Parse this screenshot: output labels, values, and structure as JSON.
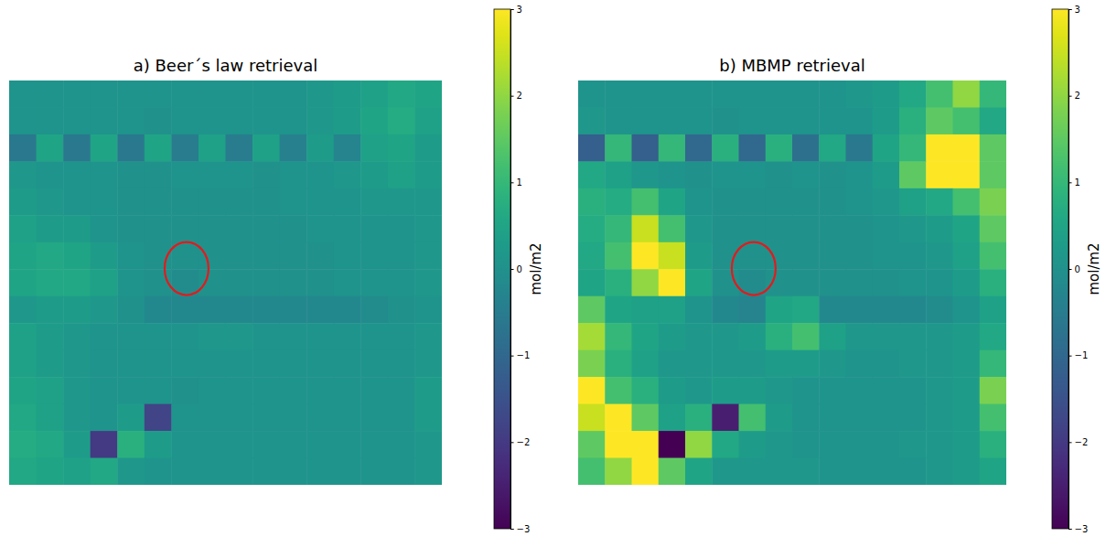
{
  "chart_data": [
    {
      "type": "heatmap",
      "title": "a) Beer´s law retrieval",
      "color": "viridis",
      "tick_labels": false,
      "colorbar": {
        "range": [
          -3,
          3
        ],
        "label": "mol/m2",
        "ticks": [
          {
            "value": -3,
            "label": "−3"
          },
          {
            "value": -2,
            "label": "−2"
          },
          {
            "value": -1,
            "label": "−1"
          },
          0,
          1,
          2,
          3
        ]
      },
      "values": [
        [
          0.1,
          0.1,
          0.1,
          0.1,
          0.1,
          0.1,
          0.1,
          0.1,
          0.1,
          0.1,
          0.1,
          0.2,
          0.3,
          0.4,
          0.6,
          0.5
        ],
        [
          0.1,
          0.1,
          0.1,
          0.1,
          0.1,
          0.0,
          0.1,
          0.1,
          0.1,
          0.1,
          0.1,
          0.2,
          0.3,
          0.5,
          0.7,
          0.4
        ],
        [
          -0.6,
          0.5,
          -0.6,
          0.5,
          -0.6,
          0.5,
          -0.5,
          0.4,
          -0.5,
          0.4,
          -0.4,
          0.3,
          -0.3,
          0.4,
          0.5,
          0.3
        ],
        [
          0.2,
          0.1,
          0.1,
          0.1,
          0.0,
          0.0,
          0.1,
          0.1,
          0.1,
          0.0,
          0.1,
          0.1,
          0.2,
          0.3,
          0.4,
          0.3
        ],
        [
          0.3,
          0.2,
          0.1,
          0.1,
          0.0,
          0.0,
          0.0,
          0.0,
          0.0,
          0.0,
          0.1,
          0.1,
          0.1,
          0.2,
          0.2,
          0.2
        ],
        [
          0.4,
          0.3,
          0.3,
          0.1,
          0.0,
          0.0,
          0.0,
          0.0,
          0.0,
          0.0,
          0.0,
          0.1,
          0.1,
          0.1,
          0.1,
          0.2
        ],
        [
          0.5,
          0.6,
          0.5,
          0.3,
          0.1,
          0.0,
          0.0,
          0.0,
          0.0,
          0.0,
          0.0,
          0.0,
          0.1,
          0.1,
          0.1,
          0.2
        ],
        [
          0.5,
          0.6,
          0.6,
          0.4,
          0.1,
          0.0,
          -0.1,
          0.0,
          0.0,
          0.0,
          0.0,
          0.0,
          0.1,
          0.1,
          0.1,
          0.2
        ],
        [
          0.2,
          0.3,
          0.3,
          0.2,
          0.0,
          -0.2,
          -0.2,
          -0.2,
          -0.2,
          -0.2,
          -0.2,
          -0.2,
          -0.2,
          -0.1,
          0.0,
          0.1
        ],
        [
          0.4,
          0.3,
          0.2,
          0.1,
          0.1,
          0.1,
          0.1,
          0.2,
          0.2,
          0.1,
          0.1,
          0.1,
          0.1,
          0.1,
          0.1,
          0.2
        ],
        [
          0.4,
          0.3,
          0.2,
          0.1,
          0.1,
          0.1,
          0.1,
          0.1,
          0.1,
          0.1,
          0.1,
          0.1,
          0.1,
          0.1,
          0.1,
          0.2
        ],
        [
          0.5,
          0.4,
          0.2,
          0.1,
          0.1,
          0.1,
          0.0,
          0.1,
          0.1,
          0.1,
          0.1,
          0.1,
          0.1,
          0.1,
          0.1,
          0.3
        ],
        [
          0.6,
          0.4,
          0.2,
          0.1,
          0.3,
          -1.8,
          0.1,
          0.1,
          0.1,
          0.1,
          0.1,
          0.1,
          0.1,
          0.1,
          0.1,
          0.3
        ],
        [
          0.7,
          0.6,
          0.3,
          -2.0,
          0.8,
          0.3,
          0.1,
          0.1,
          0.1,
          0.1,
          0.1,
          0.1,
          0.1,
          0.1,
          0.1,
          0.2
        ],
        [
          0.6,
          0.5,
          0.4,
          0.6,
          0.2,
          0.1,
          0.1,
          0.1,
          0.1,
          0.1,
          0.1,
          0.1,
          0.1,
          0.1,
          0.1,
          0.2
        ]
      ]
    },
    {
      "type": "heatmap",
      "title": "b) MBMP retrieval",
      "color": "viridis",
      "tick_labels": false,
      "colorbar": {
        "range": [
          -3,
          3
        ],
        "label": "mol/m2",
        "ticks": [
          {
            "value": -3,
            "label": "−3"
          },
          {
            "value": -2,
            "label": "−2"
          },
          {
            "value": -1,
            "label": "−1"
          },
          0,
          1,
          2,
          3
        ]
      },
      "values": [
        [
          0.1,
          0.1,
          0.1,
          0.1,
          0.1,
          0.1,
          0.1,
          0.1,
          0.1,
          0.1,
          0.2,
          0.3,
          0.6,
          1.2,
          2.0,
          1.0
        ],
        [
          0.2,
          0.1,
          0.1,
          0.1,
          0.1,
          0.0,
          0.1,
          0.1,
          0.1,
          0.1,
          0.1,
          0.3,
          0.8,
          1.5,
          1.2,
          0.6
        ],
        [
          -1.2,
          1.0,
          -1.2,
          1.0,
          -1.0,
          0.8,
          -1.0,
          0.8,
          -0.8,
          0.6,
          -0.6,
          0.5,
          1.0,
          3.0,
          3.0,
          1.5
        ],
        [
          0.6,
          0.4,
          0.2,
          0.1,
          0.0,
          0.1,
          0.1,
          0.0,
          0.1,
          0.0,
          0.1,
          0.3,
          1.5,
          3.0,
          3.0,
          1.5
        ],
        [
          0.8,
          0.7,
          1.2,
          0.5,
          0.1,
          0.0,
          0.0,
          0.0,
          0.0,
          0.0,
          0.1,
          0.2,
          0.4,
          0.6,
          1.2,
          1.8
        ],
        [
          0.7,
          1.0,
          2.5,
          1.2,
          0.2,
          0.0,
          0.0,
          0.0,
          0.0,
          0.0,
          0.0,
          0.1,
          0.2,
          0.3,
          0.5,
          1.5
        ],
        [
          0.6,
          1.2,
          3.0,
          2.5,
          0.3,
          0.0,
          0.0,
          0.0,
          0.0,
          0.0,
          0.0,
          0.1,
          0.1,
          0.2,
          0.4,
          1.2
        ],
        [
          0.5,
          0.8,
          2.0,
          3.0,
          0.5,
          0.0,
          -0.1,
          0.0,
          0.0,
          0.0,
          0.0,
          0.0,
          0.1,
          0.1,
          0.3,
          0.8
        ],
        [
          1.5,
          0.5,
          0.4,
          0.4,
          0.1,
          -0.2,
          -0.3,
          0.5,
          0.6,
          -0.2,
          -0.2,
          -0.2,
          -0.2,
          -0.1,
          0.1,
          0.4
        ],
        [
          2.2,
          1.0,
          0.5,
          0.3,
          0.2,
          0.2,
          0.3,
          0.8,
          1.2,
          0.4,
          0.2,
          0.2,
          0.2,
          0.2,
          0.3,
          0.6
        ],
        [
          1.8,
          0.8,
          0.4,
          0.2,
          0.2,
          0.2,
          0.2,
          0.3,
          0.3,
          0.2,
          0.1,
          0.1,
          0.2,
          0.2,
          0.3,
          1.0
        ],
        [
          3.0,
          1.2,
          0.8,
          0.3,
          0.2,
          0.3,
          0.3,
          0.2,
          0.1,
          0.1,
          0.1,
          0.1,
          0.1,
          0.2,
          0.3,
          1.8
        ],
        [
          2.5,
          3.0,
          1.5,
          0.4,
          0.8,
          -2.5,
          1.2,
          0.3,
          0.1,
          0.1,
          0.1,
          0.1,
          0.1,
          0.2,
          0.3,
          1.2
        ],
        [
          1.5,
          3.0,
          3.0,
          -3.0,
          2.0,
          0.6,
          0.3,
          0.2,
          0.1,
          0.1,
          0.1,
          0.1,
          0.2,
          0.2,
          0.3,
          0.8
        ],
        [
          1.2,
          2.0,
          3.0,
          1.5,
          0.5,
          0.2,
          0.2,
          0.2,
          0.2,
          0.1,
          0.1,
          0.1,
          0.1,
          0.2,
          0.3,
          0.5
        ]
      ]
    }
  ]
}
